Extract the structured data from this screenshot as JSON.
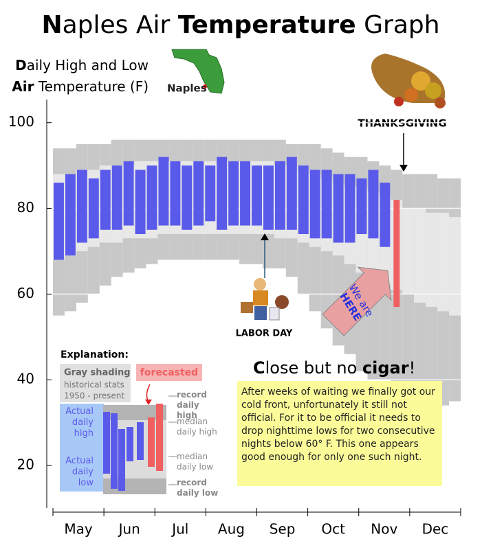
{
  "chart_data": {
    "type": "range_bar",
    "title_parts": [
      "N",
      "aples Air ",
      "Temperature",
      " Graph"
    ],
    "subtitle_lines": [
      [
        "D",
        "aily High and Low"
      ],
      [
        "Air",
        " Temperature (F)"
      ]
    ],
    "map_label": "Naples",
    "annotations": {
      "thanksgiving": "THANKSGIVING",
      "labor_day": "LABOR DAY",
      "sign_lines": [
        "We are",
        "HERE"
      ]
    },
    "headline_parts": [
      "C",
      "lose but no ",
      "cigar",
      "!"
    ],
    "note": "After weeks of waiting we finally got our cold front, unfortunately it still not official.  For it to be official it needs to drop nighttime lows for two consecutive nights below 60° F. This one appears good enough for only one such night.",
    "explanation": {
      "title": "Explanation:",
      "gray_title": "Gray shading",
      "gray_lines": [
        "historical stats",
        "1950 - present"
      ]
    },
    "months": [
      "May",
      "Jun",
      "Jul",
      "Aug",
      "Sep",
      "Oct",
      "Nov",
      "Dec"
    ],
    "ylim": [
      10,
      105
    ],
    "yticks": [
      20,
      40,
      60,
      80,
      100
    ],
    "grid": true,
    "series": [
      {
        "name": "record daily high",
        "color": "#c8c8c8",
        "values": [
          94,
          94,
          95,
          95,
          95,
          96,
          96,
          96,
          96,
          96,
          96,
          96,
          96,
          96,
          96,
          96,
          96,
          96,
          96,
          96,
          95,
          95,
          95,
          94,
          93,
          92,
          92,
          91,
          90,
          89,
          88,
          88,
          88,
          87,
          87
        ]
      },
      {
        "name": "median daily high",
        "color": "#e8e8e8",
        "values": [
          88,
          88,
          89,
          89,
          90,
          90,
          90,
          91,
          91,
          91,
          91,
          91,
          91,
          91,
          91,
          91,
          91,
          91,
          91,
          90,
          90,
          89,
          88,
          87,
          86,
          85,
          85,
          84,
          83,
          82,
          80,
          80,
          79,
          79,
          78
        ]
      },
      {
        "name": "median daily low",
        "color": "#e8e8e8",
        "values": [
          68,
          69,
          70,
          71,
          72,
          72,
          73,
          73,
          73,
          74,
          74,
          74,
          74,
          74,
          74,
          74,
          74,
          74,
          74,
          73,
          73,
          72,
          71,
          70,
          69,
          67,
          65,
          64,
          62,
          61,
          60,
          58,
          57,
          56,
          55
        ]
      },
      {
        "name": "record daily low",
        "color": "#c8c8c8",
        "values": [
          55,
          56,
          58,
          60,
          62,
          64,
          65,
          66,
          67,
          68,
          68,
          68,
          68,
          68,
          68,
          68,
          67,
          67,
          66,
          66,
          64,
          60,
          56,
          52,
          48,
          46,
          42,
          40,
          40,
          38,
          38,
          36,
          35,
          34,
          35
        ]
      },
      {
        "name": "Actual daily high",
        "color": "#5a5aea",
        "values": [
          86,
          88,
          89,
          87,
          89,
          90,
          91,
          89,
          90,
          92,
          91,
          90,
          91,
          90,
          92,
          91,
          91,
          90,
          90,
          91,
          92,
          90,
          89,
          89,
          88,
          88,
          87,
          89,
          86,
          null,
          null,
          null,
          null,
          null,
          null
        ]
      },
      {
        "name": "Actual daily low",
        "color": "#5a5aea",
        "values": [
          68,
          69,
          72,
          73,
          75,
          75,
          76,
          74,
          75,
          76,
          76,
          75,
          76,
          77,
          75,
          76,
          76,
          76,
          75,
          75,
          75,
          74,
          73,
          73,
          72,
          72,
          74,
          73,
          71,
          null,
          null,
          null,
          null,
          null,
          null
        ]
      }
    ],
    "forecast": {
      "name": "forecasted",
      "color": "#f06060",
      "high": [
        null,
        null,
        null,
        null,
        null,
        null,
        null,
        null,
        null,
        null,
        null,
        null,
        null,
        null,
        null,
        null,
        null,
        null,
        null,
        null,
        null,
        null,
        null,
        null,
        null,
        null,
        null,
        null,
        null,
        82,
        null,
        null,
        null,
        null,
        null
      ],
      "low": [
        null,
        null,
        null,
        null,
        null,
        null,
        null,
        null,
        null,
        null,
        null,
        null,
        null,
        null,
        null,
        null,
        null,
        null,
        null,
        null,
        null,
        null,
        null,
        null,
        null,
        null,
        null,
        null,
        null,
        57,
        null,
        null,
        null,
        null,
        null
      ]
    }
  }
}
